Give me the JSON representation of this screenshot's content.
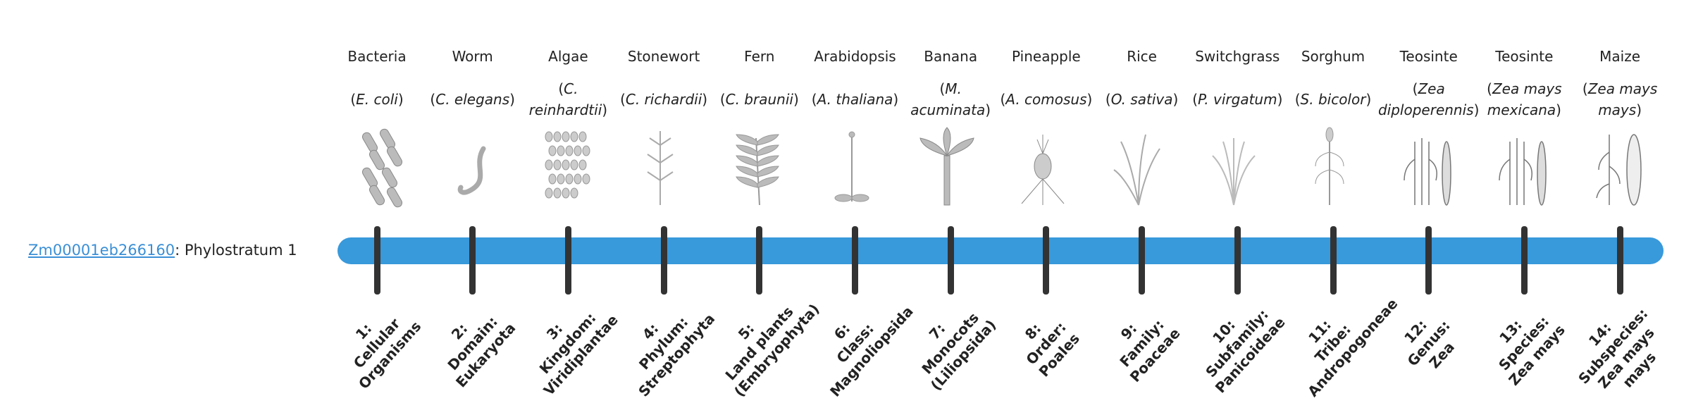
{
  "gene": {
    "id": "Zm00001eb266160",
    "suffix": ": Phylostratum 1"
  },
  "colors": {
    "bar": "#3899db",
    "tick": "#333333",
    "link": "#3a8fd6"
  },
  "organisms": [
    {
      "common": "Bacteria",
      "sci": "E. coli",
      "icon": "bacteria-icon",
      "num": "1:",
      "rank": "",
      "name": "Cellular Organisms"
    },
    {
      "common": "Worm",
      "sci": "C. elegans",
      "icon": "worm-icon",
      "num": "2:",
      "rank": "Domain:",
      "name": "Eukaryota"
    },
    {
      "common": "Algae",
      "sci": "C. reinhardtii",
      "icon": "algae-icon",
      "num": "3:",
      "rank": "Kingdom:",
      "name": "Viridiplantae"
    },
    {
      "common": "Stonewort",
      "sci": "C. richardii",
      "icon": "stonewort-icon",
      "num": "4:",
      "rank": "Phylum:",
      "name": "Streptophyta"
    },
    {
      "common": "Fern",
      "sci": "C. braunii",
      "icon": "fern-icon",
      "num": "5:",
      "rank": "",
      "name": "Land plants (Embryophyta)"
    },
    {
      "common": "Arabidopsis",
      "sci": "A. thaliana",
      "icon": "arabidopsis-icon",
      "num": "6:",
      "rank": "Class:",
      "name": "Magnoliopsida"
    },
    {
      "common": "Banana",
      "sci": "M. acuminata",
      "icon": "banana-icon",
      "num": "7:",
      "rank": "Monocots",
      "name": "(Liliopsida)"
    },
    {
      "common": "Pineapple",
      "sci": "A. comosus",
      "icon": "pineapple-icon",
      "num": "8:",
      "rank": "Order:",
      "name": "Poales"
    },
    {
      "common": "Rice",
      "sci": "O. sativa",
      "icon": "rice-icon",
      "num": "9:",
      "rank": "Family:",
      "name": "Poaceae"
    },
    {
      "common": "Switchgrass",
      "sci": "P. virgatum",
      "icon": "switchgrass-icon",
      "num": "10:",
      "rank": "Subfamily:",
      "name": "Panicoideae"
    },
    {
      "common": "Sorghum",
      "sci": "S. bicolor",
      "icon": "sorghum-icon",
      "num": "11:",
      "rank": "Tribe:",
      "name": "Andropogoneae"
    },
    {
      "common": "Teosinte",
      "sci": "Zea diploperennis",
      "icon": "teosinte-icon",
      "num": "12:",
      "rank": "Genus:",
      "name": "Zea"
    },
    {
      "common": "Teosinte",
      "sci": "Zea mays mexicana",
      "icon": "teosinte-icon",
      "num": "13:",
      "rank": "Species:",
      "name": "Zea mays"
    },
    {
      "common": "Maize",
      "sci": "Zea mays mays",
      "icon": "maize-icon",
      "num": "14:",
      "rank": "Subspecies:",
      "name": "Zea mays mays"
    }
  ]
}
